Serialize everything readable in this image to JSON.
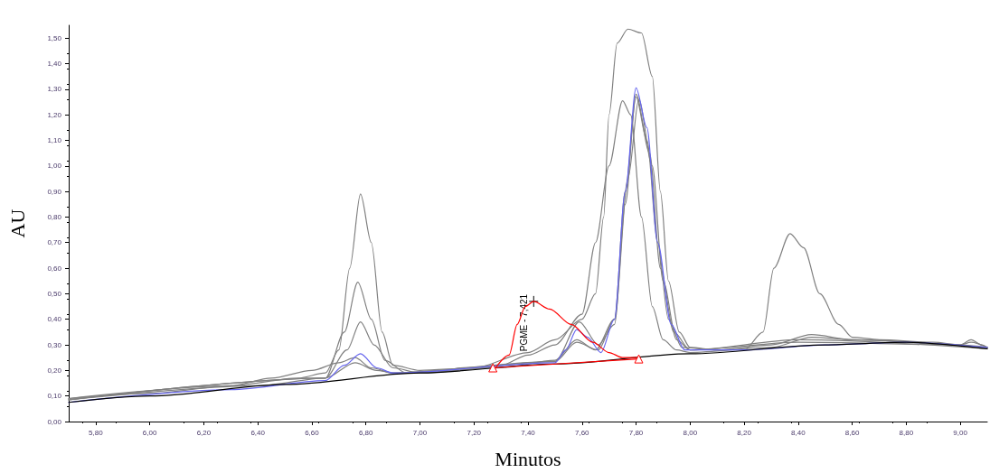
{
  "chart_data": {
    "type": "line",
    "xlabel": "Minutos",
    "ylabel": "AU",
    "xlim": [
      5.7,
      9.1
    ],
    "ylim": [
      0,
      1.55
    ],
    "xticks": [
      {
        "value": 5.8,
        "label": "5,80"
      },
      {
        "value": 6.0,
        "label": "6,00"
      },
      {
        "value": 6.2,
        "label": "6,20"
      },
      {
        "value": 6.4,
        "label": "6,40"
      },
      {
        "value": 6.6,
        "label": "6,60"
      },
      {
        "value": 6.8,
        "label": "6,80"
      },
      {
        "value": 7.0,
        "label": "7,00"
      },
      {
        "value": 7.2,
        "label": "7,20"
      },
      {
        "value": 7.4,
        "label": "7,40"
      },
      {
        "value": 7.6,
        "label": "7,60"
      },
      {
        "value": 7.8,
        "label": "7,80"
      },
      {
        "value": 8.0,
        "label": "8,00"
      },
      {
        "value": 8.2,
        "label": "8,20"
      },
      {
        "value": 8.4,
        "label": "8,40"
      },
      {
        "value": 8.6,
        "label": "8,60"
      },
      {
        "value": 8.8,
        "label": "8,80"
      },
      {
        "value": 9.0,
        "label": "9,00"
      }
    ],
    "yticks": [
      {
        "value": 0,
        "label": "0,00"
      },
      {
        "value": 0.1,
        "label": "0,10"
      },
      {
        "value": 0.2,
        "label": "0,20"
      },
      {
        "value": 0.3,
        "label": "0,30"
      },
      {
        "value": 0.4,
        "label": "0,40"
      },
      {
        "value": 0.5,
        "label": "0,50"
      },
      {
        "value": 0.6,
        "label": "0,60"
      },
      {
        "value": 0.7,
        "label": "0,70"
      },
      {
        "value": 0.8,
        "label": "0,80"
      },
      {
        "value": 0.9,
        "label": "0,90"
      },
      {
        "value": 1.0,
        "label": "1,00"
      },
      {
        "value": 1.1,
        "label": "1,10"
      },
      {
        "value": 1.2,
        "label": "1,20"
      },
      {
        "value": 1.3,
        "label": "1,30"
      },
      {
        "value": 1.4,
        "label": "1,40"
      },
      {
        "value": 1.5,
        "label": "1,50"
      }
    ],
    "grid": false,
    "marker": "none",
    "line_style": "solid",
    "annotations": [
      {
        "text": "PGME - 7,421",
        "x": 7.421,
        "y": 0.47
      }
    ],
    "series": [
      {
        "color": "#808080",
        "x": [
          5.7,
          6.0,
          6.3,
          6.55,
          6.65,
          6.7,
          6.74,
          6.78,
          6.82,
          6.86,
          6.9,
          7.0,
          7.2,
          7.4,
          7.5,
          7.6,
          7.65,
          7.68,
          7.7,
          7.73,
          7.77,
          7.82,
          7.86,
          7.89,
          7.92,
          7.96,
          8.0,
          8.1,
          8.2,
          8.27,
          8.31,
          8.37,
          8.42,
          8.48,
          8.55,
          8.6,
          8.7,
          8.9,
          9.0,
          9.04,
          9.08,
          9.1
        ],
        "values": [
          0.09,
          0.11,
          0.14,
          0.17,
          0.19,
          0.28,
          0.6,
          0.89,
          0.7,
          0.35,
          0.22,
          0.2,
          0.21,
          0.27,
          0.32,
          0.4,
          0.5,
          0.8,
          1.2,
          1.48,
          1.535,
          1.52,
          1.35,
          0.9,
          0.55,
          0.35,
          0.29,
          0.28,
          0.28,
          0.35,
          0.6,
          0.735,
          0.68,
          0.5,
          0.38,
          0.33,
          0.32,
          0.31,
          0.3,
          0.32,
          0.3,
          0.29
        ]
      },
      {
        "color": "#808080",
        "x": [
          5.7,
          6.3,
          6.45,
          6.6,
          6.7,
          6.76,
          6.82,
          6.9,
          7.1,
          7.15,
          7.3,
          7.4,
          7.5,
          7.6,
          7.65,
          7.7,
          7.75,
          7.78,
          7.82,
          7.86,
          7.9,
          7.95,
          8.0,
          8.3,
          8.45,
          8.6,
          9.0,
          9.1
        ],
        "values": [
          0.09,
          0.14,
          0.17,
          0.2,
          0.23,
          0.25,
          0.21,
          0.19,
          0.2,
          0.21,
          0.22,
          0.26,
          0.3,
          0.42,
          0.7,
          1.0,
          1.255,
          1.2,
          0.8,
          0.45,
          0.32,
          0.28,
          0.27,
          0.29,
          0.33,
          0.32,
          0.3,
          0.29
        ]
      },
      {
        "color": "#808080",
        "x": [
          5.7,
          6.4,
          6.65,
          6.72,
          6.77,
          6.82,
          6.87,
          6.95,
          7.3,
          7.5,
          7.58,
          7.65,
          7.72,
          7.76,
          7.8,
          7.84,
          7.88,
          7.92,
          7.97,
          8.1,
          8.3,
          8.45,
          8.6,
          9.1
        ],
        "values": [
          0.085,
          0.14,
          0.17,
          0.35,
          0.545,
          0.4,
          0.24,
          0.19,
          0.21,
          0.24,
          0.32,
          0.28,
          0.4,
          0.9,
          1.27,
          1.1,
          0.7,
          0.4,
          0.29,
          0.28,
          0.3,
          0.34,
          0.32,
          0.29
        ]
      },
      {
        "color": "#808080",
        "x": [
          5.7,
          6.65,
          6.73,
          6.78,
          6.83,
          6.9,
          7.0,
          7.5,
          7.59,
          7.66,
          7.72,
          7.76,
          7.8,
          7.85,
          7.89,
          7.94,
          8.0,
          8.4,
          9.1
        ],
        "values": [
          0.085,
          0.17,
          0.28,
          0.39,
          0.3,
          0.21,
          0.19,
          0.235,
          0.39,
          0.3,
          0.38,
          0.85,
          1.28,
          1.05,
          0.6,
          0.35,
          0.28,
          0.32,
          0.285
        ]
      },
      {
        "color": "#808080",
        "x": [
          5.7,
          6.65,
          6.76,
          6.84,
          6.9,
          7.5,
          7.58,
          7.66,
          7.72,
          7.77,
          7.81,
          7.86,
          7.9,
          7.95,
          8.0,
          8.4,
          9.0,
          9.04,
          9.1
        ],
        "values": [
          0.085,
          0.17,
          0.23,
          0.2,
          0.19,
          0.235,
          0.31,
          0.28,
          0.4,
          0.95,
          1.26,
          1.0,
          0.55,
          0.32,
          0.28,
          0.31,
          0.3,
          0.31,
          0.29
        ]
      },
      {
        "color": "#6666ee",
        "x": [
          5.7,
          6.3,
          6.65,
          6.72,
          6.78,
          6.84,
          6.9,
          7.5,
          7.54,
          7.58,
          7.62,
          7.67,
          7.72,
          7.76,
          7.8,
          7.84,
          7.88,
          7.93,
          7.98,
          8.2,
          8.5,
          8.8,
          9.1
        ],
        "values": [
          0.075,
          0.125,
          0.16,
          0.22,
          0.265,
          0.21,
          0.19,
          0.23,
          0.28,
          0.36,
          0.33,
          0.27,
          0.4,
          0.9,
          1.305,
          1.15,
          0.7,
          0.38,
          0.28,
          0.28,
          0.3,
          0.31,
          0.29
        ]
      },
      {
        "color": "#000000",
        "x": [
          5.7,
          6.0,
          6.5,
          7.0,
          7.5,
          8.0,
          8.5,
          8.8,
          9.1
        ],
        "values": [
          0.075,
          0.1,
          0.145,
          0.19,
          0.225,
          0.265,
          0.3,
          0.31,
          0.285
        ]
      },
      {
        "color": "#ff0000",
        "x": [
          7.28,
          7.33,
          7.36,
          7.39,
          7.421,
          7.48,
          7.56,
          7.64,
          7.7,
          7.75,
          7.81
        ],
        "values": [
          0.21,
          0.26,
          0.38,
          0.45,
          0.47,
          0.44,
          0.38,
          0.31,
          0.27,
          0.25,
          0.25
        ]
      },
      {
        "color": "#ff0000",
        "marker": "triangle",
        "x": [
          7.27,
          7.81
        ],
        "values": [
          0.21,
          0.245
        ]
      }
    ]
  }
}
